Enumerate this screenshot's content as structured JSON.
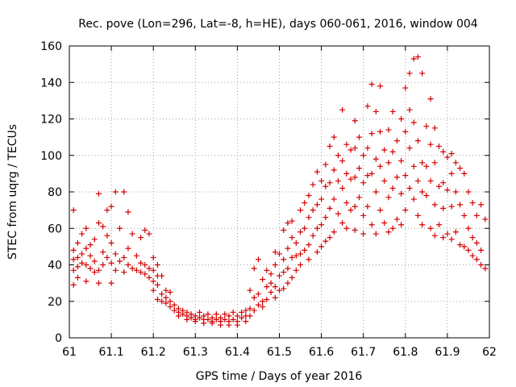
{
  "chart_data": {
    "type": "scatter",
    "title": "Rec. pove (Lon=296, Lat=-8, h=HE), days 060-061, 2016, window 004",
    "xlabel": "GPS time / Days of year 2016",
    "ylabel": "STEC from uqrg / TECUs",
    "xlim": [
      61,
      62
    ],
    "ylim": [
      0,
      160
    ],
    "xticks": [
      "61",
      "61.1",
      "61.2",
      "61.3",
      "61.4",
      "61.5",
      "61.6",
      "61.7",
      "61.8",
      "61.9",
      "62"
    ],
    "yticks": [
      "0",
      "20",
      "40",
      "60",
      "80",
      "100",
      "120",
      "140",
      "160"
    ],
    "grid": true,
    "legend": "none",
    "marker": "plus",
    "color": "#d40000",
    "series": [
      {
        "points": [
          [
            61.01,
            70
          ],
          [
            61.01,
            48
          ],
          [
            61.01,
            43
          ],
          [
            61.01,
            37
          ],
          [
            61.01,
            29
          ],
          [
            61.02,
            52
          ],
          [
            61.02,
            44
          ],
          [
            61.02,
            39
          ],
          [
            61.02,
            33
          ],
          [
            61.03,
            57
          ],
          [
            61.03,
            46
          ],
          [
            61.03,
            41
          ],
          [
            61.04,
            60
          ],
          [
            61.04,
            49
          ],
          [
            61.04,
            40
          ],
          [
            61.04,
            31
          ],
          [
            61.05,
            51
          ],
          [
            61.05,
            45
          ],
          [
            61.05,
            38
          ],
          [
            61.06,
            54
          ],
          [
            61.06,
            42
          ],
          [
            61.06,
            36
          ],
          [
            61.07,
            79
          ],
          [
            61.07,
            63
          ],
          [
            61.07,
            37
          ],
          [
            61.07,
            30
          ],
          [
            61.08,
            61
          ],
          [
            61.08,
            47
          ],
          [
            61.08,
            40
          ],
          [
            61.09,
            70
          ],
          [
            61.09,
            56
          ],
          [
            61.09,
            44
          ],
          [
            61.1,
            72
          ],
          [
            61.1,
            52
          ],
          [
            61.1,
            41
          ],
          [
            61.1,
            30
          ],
          [
            61.11,
            80
          ],
          [
            61.11,
            46
          ],
          [
            61.11,
            37
          ],
          [
            61.12,
            60
          ],
          [
            61.12,
            42
          ],
          [
            61.13,
            80
          ],
          [
            61.13,
            44
          ],
          [
            61.13,
            36
          ],
          [
            61.14,
            69
          ],
          [
            61.14,
            49
          ],
          [
            61.14,
            40
          ],
          [
            61.15,
            57
          ],
          [
            61.15,
            38
          ],
          [
            61.16,
            45
          ],
          [
            61.16,
            37
          ],
          [
            61.17,
            55
          ],
          [
            61.17,
            41
          ],
          [
            61.17,
            36
          ],
          [
            61.18,
            59
          ],
          [
            61.18,
            40
          ],
          [
            61.18,
            35
          ],
          [
            61.19,
            57
          ],
          [
            61.19,
            38
          ],
          [
            61.19,
            33
          ],
          [
            61.2,
            44
          ],
          [
            61.2,
            37
          ],
          [
            61.2,
            31
          ],
          [
            61.2,
            26
          ],
          [
            61.21,
            40
          ],
          [
            61.21,
            34
          ],
          [
            61.21,
            29
          ],
          [
            61.21,
            21
          ],
          [
            61.22,
            34
          ],
          [
            61.22,
            24
          ],
          [
            61.22,
            20
          ],
          [
            61.23,
            26
          ],
          [
            61.23,
            22
          ],
          [
            61.23,
            19
          ],
          [
            61.24,
            25
          ],
          [
            61.24,
            20
          ],
          [
            61.24,
            17
          ],
          [
            61.25,
            18
          ],
          [
            61.25,
            15
          ],
          [
            61.26,
            16
          ],
          [
            61.26,
            14
          ],
          [
            61.26,
            12
          ],
          [
            61.27,
            15
          ],
          [
            61.27,
            13
          ],
          [
            61.28,
            14
          ],
          [
            61.28,
            12
          ],
          [
            61.28,
            10
          ],
          [
            61.29,
            13
          ],
          [
            61.29,
            11
          ],
          [
            61.3,
            12
          ],
          [
            61.3,
            10
          ],
          [
            61.3,
            9
          ],
          [
            61.31,
            14
          ],
          [
            61.31,
            11
          ],
          [
            61.32,
            12
          ],
          [
            61.32,
            10
          ],
          [
            61.32,
            8
          ],
          [
            61.33,
            13
          ],
          [
            61.33,
            10
          ],
          [
            61.34,
            11
          ],
          [
            61.34,
            9
          ],
          [
            61.34,
            8
          ],
          [
            61.35,
            13
          ],
          [
            61.35,
            10
          ],
          [
            61.36,
            11
          ],
          [
            61.36,
            9
          ],
          [
            61.36,
            7
          ],
          [
            61.37,
            13
          ],
          [
            61.37,
            10
          ],
          [
            61.38,
            12
          ],
          [
            61.38,
            9
          ],
          [
            61.38,
            7
          ],
          [
            61.39,
            14
          ],
          [
            61.39,
            10
          ],
          [
            61.4,
            12
          ],
          [
            61.4,
            9
          ],
          [
            61.4,
            7
          ],
          [
            61.41,
            14
          ],
          [
            61.41,
            11
          ],
          [
            61.42,
            15
          ],
          [
            61.42,
            12
          ],
          [
            61.42,
            9
          ],
          [
            61.43,
            26
          ],
          [
            61.43,
            16
          ],
          [
            61.43,
            12
          ],
          [
            61.44,
            38
          ],
          [
            61.44,
            22
          ],
          [
            61.44,
            15
          ],
          [
            61.45,
            43
          ],
          [
            61.45,
            24
          ],
          [
            61.45,
            18
          ],
          [
            61.46,
            32
          ],
          [
            61.46,
            20
          ],
          [
            61.46,
            17
          ],
          [
            61.47,
            37
          ],
          [
            61.47,
            28
          ],
          [
            61.47,
            21
          ],
          [
            61.48,
            35
          ],
          [
            61.48,
            30
          ],
          [
            61.48,
            25
          ],
          [
            61.49,
            47
          ],
          [
            61.49,
            40
          ],
          [
            61.49,
            28
          ],
          [
            61.49,
            22
          ],
          [
            61.5,
            46
          ],
          [
            61.5,
            34
          ],
          [
            61.5,
            26
          ],
          [
            61.51,
            59
          ],
          [
            61.51,
            43
          ],
          [
            61.51,
            36
          ],
          [
            61.51,
            27
          ],
          [
            61.52,
            63
          ],
          [
            61.52,
            49
          ],
          [
            61.52,
            38
          ],
          [
            61.52,
            30
          ],
          [
            61.53,
            64
          ],
          [
            61.53,
            55
          ],
          [
            61.53,
            44
          ],
          [
            61.53,
            33
          ],
          [
            61.54,
            52
          ],
          [
            61.54,
            45
          ],
          [
            61.54,
            37
          ],
          [
            61.55,
            70
          ],
          [
            61.55,
            58
          ],
          [
            61.55,
            46
          ],
          [
            61.55,
            40
          ],
          [
            61.56,
            74
          ],
          [
            61.56,
            60
          ],
          [
            61.56,
            48
          ],
          [
            61.57,
            78
          ],
          [
            61.57,
            66
          ],
          [
            61.57,
            51
          ],
          [
            61.57,
            43
          ],
          [
            61.58,
            84
          ],
          [
            61.58,
            70
          ],
          [
            61.58,
            56
          ],
          [
            61.59,
            91
          ],
          [
            61.59,
            73
          ],
          [
            61.59,
            60
          ],
          [
            61.59,
            47
          ],
          [
            61.6,
            86
          ],
          [
            61.6,
            76
          ],
          [
            61.6,
            62
          ],
          [
            61.6,
            50
          ],
          [
            61.61,
            95
          ],
          [
            61.61,
            83
          ],
          [
            61.61,
            66
          ],
          [
            61.61,
            53
          ],
          [
            61.62,
            105
          ],
          [
            61.62,
            85
          ],
          [
            61.62,
            71
          ],
          [
            61.62,
            55
          ],
          [
            61.63,
            110
          ],
          [
            61.63,
            92
          ],
          [
            61.63,
            76
          ],
          [
            61.63,
            58
          ],
          [
            61.64,
            100
          ],
          [
            61.64,
            86
          ],
          [
            61.64,
            68
          ],
          [
            61.65,
            125
          ],
          [
            61.65,
            97
          ],
          [
            61.65,
            82
          ],
          [
            61.65,
            63
          ],
          [
            61.66,
            106
          ],
          [
            61.66,
            90
          ],
          [
            61.66,
            74
          ],
          [
            61.66,
            60
          ],
          [
            61.67,
            103
          ],
          [
            61.67,
            87
          ],
          [
            61.67,
            70
          ],
          [
            61.68,
            119
          ],
          [
            61.68,
            104
          ],
          [
            61.68,
            88
          ],
          [
            61.68,
            72
          ],
          [
            61.68,
            59
          ],
          [
            61.69,
            110
          ],
          [
            61.69,
            93
          ],
          [
            61.69,
            77
          ],
          [
            61.7,
            100
          ],
          [
            61.7,
            85
          ],
          [
            61.7,
            67
          ],
          [
            61.7,
            57
          ],
          [
            61.71,
            127
          ],
          [
            61.71,
            104
          ],
          [
            61.71,
            89
          ],
          [
            61.71,
            72
          ],
          [
            61.72,
            139
          ],
          [
            61.72,
            112
          ],
          [
            61.72,
            90
          ],
          [
            61.72,
            62
          ],
          [
            61.73,
            124
          ],
          [
            61.73,
            98
          ],
          [
            61.73,
            80
          ],
          [
            61.73,
            57
          ],
          [
            61.74,
            138
          ],
          [
            61.74,
            113
          ],
          [
            61.74,
            94
          ],
          [
            61.74,
            70
          ],
          [
            61.75,
            103
          ],
          [
            61.75,
            86
          ],
          [
            61.75,
            63
          ],
          [
            61.76,
            114
          ],
          [
            61.76,
            96
          ],
          [
            61.76,
            77
          ],
          [
            61.76,
            58
          ],
          [
            61.77,
            124
          ],
          [
            61.77,
            102
          ],
          [
            61.77,
            82
          ],
          [
            61.77,
            60
          ],
          [
            61.78,
            108
          ],
          [
            61.78,
            88
          ],
          [
            61.78,
            65
          ],
          [
            61.79,
            120
          ],
          [
            61.79,
            97
          ],
          [
            61.79,
            79
          ],
          [
            61.79,
            62
          ],
          [
            61.8,
            137
          ],
          [
            61.8,
            113
          ],
          [
            61.8,
            89
          ],
          [
            61.8,
            70
          ],
          [
            61.81,
            145
          ],
          [
            61.81,
            125
          ],
          [
            61.81,
            104
          ],
          [
            61.81,
            82
          ],
          [
            61.82,
            153
          ],
          [
            61.82,
            118
          ],
          [
            61.82,
            94
          ],
          [
            61.82,
            76
          ],
          [
            61.83,
            154
          ],
          [
            61.83,
            108
          ],
          [
            61.83,
            86
          ],
          [
            61.83,
            67
          ],
          [
            61.84,
            145
          ],
          [
            61.84,
            96
          ],
          [
            61.84,
            80
          ],
          [
            61.84,
            62
          ],
          [
            61.85,
            116
          ],
          [
            61.85,
            94
          ],
          [
            61.85,
            78
          ],
          [
            61.86,
            131
          ],
          [
            61.86,
            106
          ],
          [
            61.86,
            86
          ],
          [
            61.86,
            60
          ],
          [
            61.87,
            115
          ],
          [
            61.87,
            96
          ],
          [
            61.87,
            73
          ],
          [
            61.87,
            56
          ],
          [
            61.88,
            105
          ],
          [
            61.88,
            83
          ],
          [
            61.88,
            62
          ],
          [
            61.89,
            102
          ],
          [
            61.89,
            85
          ],
          [
            61.89,
            71
          ],
          [
            61.89,
            55
          ],
          [
            61.9,
            99
          ],
          [
            61.9,
            81
          ],
          [
            61.9,
            57
          ],
          [
            61.91,
            101
          ],
          [
            61.91,
            90
          ],
          [
            61.91,
            72
          ],
          [
            61.91,
            54
          ],
          [
            61.92,
            96
          ],
          [
            61.92,
            80
          ],
          [
            61.92,
            58
          ],
          [
            61.93,
            93
          ],
          [
            61.93,
            73
          ],
          [
            61.93,
            51
          ],
          [
            61.94,
            90
          ],
          [
            61.94,
            67
          ],
          [
            61.94,
            50
          ],
          [
            61.95,
            80
          ],
          [
            61.95,
            60
          ],
          [
            61.95,
            48
          ],
          [
            61.96,
            74
          ],
          [
            61.96,
            55
          ],
          [
            61.96,
            45
          ],
          [
            61.97,
            67
          ],
          [
            61.97,
            52
          ],
          [
            61.97,
            43
          ],
          [
            61.98,
            73
          ],
          [
            61.98,
            48
          ],
          [
            61.98,
            40
          ],
          [
            61.99,
            65
          ],
          [
            61.99,
            38
          ]
        ]
      }
    ]
  }
}
